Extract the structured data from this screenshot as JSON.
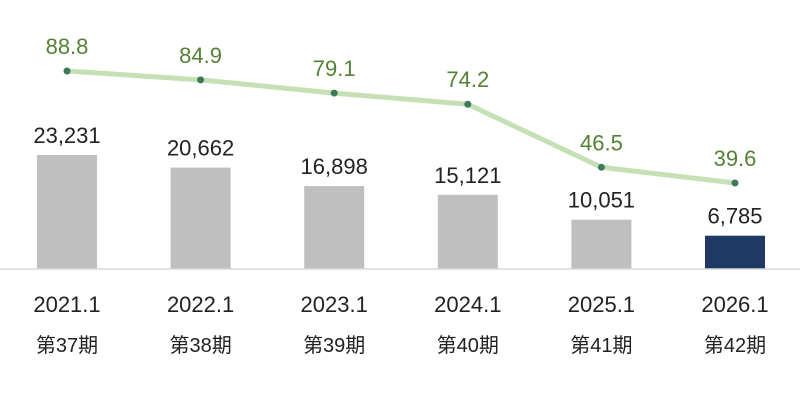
{
  "chart_data": {
    "type": "bar",
    "categories": [
      "2021.1",
      "2022.1",
      "2023.1",
      "2024.1",
      "2025.1",
      "2026.1"
    ],
    "periods": [
      "第37期",
      "第38期",
      "第39期",
      "第40期",
      "第41期",
      "第42期"
    ],
    "bar_values": [
      23231,
      20662,
      16898,
      15121,
      10051,
      6785
    ],
    "bar_value_labels": [
      "23,231",
      "20,662",
      "16,898",
      "15,121",
      "10,051",
      "6,785"
    ],
    "line_values": [
      88.8,
      84.9,
      79.1,
      74.2,
      46.5,
      39.6
    ],
    "line_value_labels": [
      "88.8",
      "84.9",
      "79.1",
      "74.2",
      "46.5",
      "39.6"
    ],
    "highlight_index": 5,
    "colors": {
      "bar": "#bfbfbf",
      "bar_highlight": "#1f3864",
      "line": "#c5e0b4",
      "marker": "#3d7a5a",
      "line_label": "#548235",
      "axis": "#d9d9d9"
    }
  }
}
